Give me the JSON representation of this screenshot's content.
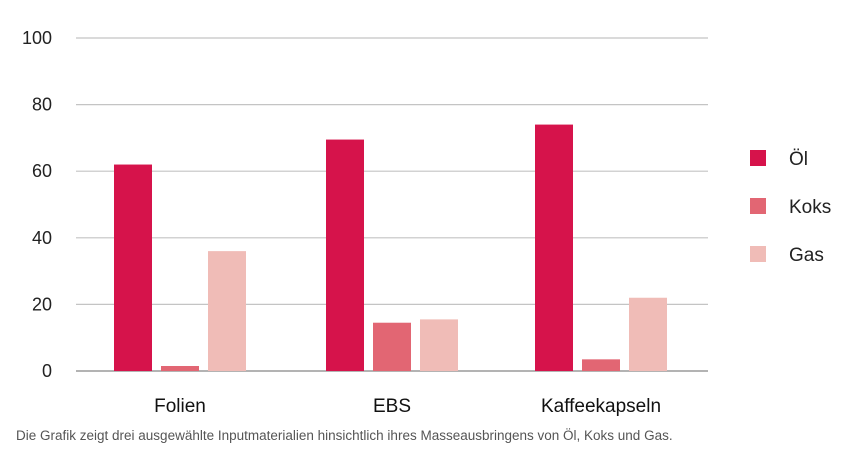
{
  "chart_data": {
    "type": "bar",
    "categories": [
      "Folien",
      "EBS",
      "Kaffeekapseln"
    ],
    "series": [
      {
        "name": "Öl",
        "values": [
          62,
          69.5,
          74
        ],
        "color": "#d6134b"
      },
      {
        "name": "Koks",
        "values": [
          1.5,
          14.5,
          3.5
        ],
        "color": "#e26673"
      },
      {
        "name": "Gas",
        "values": [
          36,
          15.5,
          22
        ],
        "color": "#f0bcb7"
      }
    ],
    "ylim": [
      0,
      100
    ],
    "yticks": [
      0,
      20,
      40,
      60,
      80,
      100
    ],
    "grid": true,
    "legend": "right"
  },
  "caption": "Die Grafik zeigt drei ausgewählte Inputmaterialien hinsichtlich ihres Masseausbringens von Öl, Koks und Gas."
}
